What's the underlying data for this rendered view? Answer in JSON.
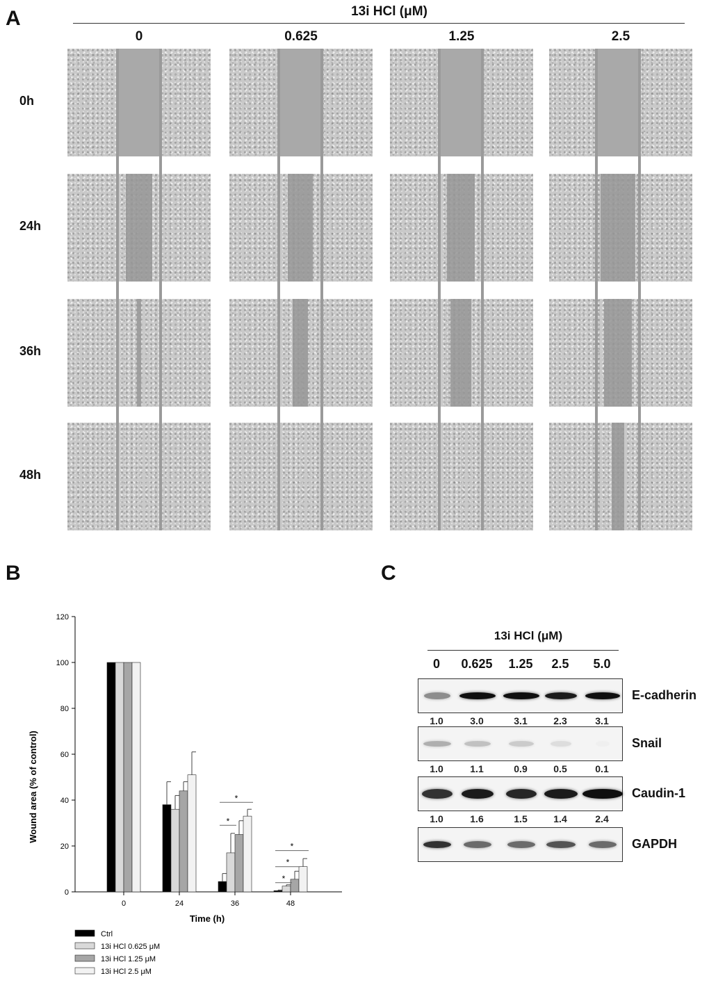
{
  "panel_a": {
    "letter": "A",
    "treatment_label": "13i HCl (μM)",
    "concentrations": [
      "0",
      "0.625",
      "1.25",
      "2.5"
    ],
    "timepoints": [
      "0h",
      "24h",
      "36h",
      "48h"
    ]
  },
  "panel_b": {
    "letter": "B"
  },
  "panel_c": {
    "letter": "C",
    "treatment_label": "13i HCl (μM)",
    "concentrations": [
      "0",
      "0.625",
      "1.25",
      "2.5",
      "5.0"
    ],
    "proteins": [
      {
        "name": "E-cadherin",
        "quant": [
          "1.0",
          "3.0",
          "3.1",
          "2.3",
          "3.1"
        ]
      },
      {
        "name": "Snail",
        "quant": [
          "1.0",
          "1.1",
          "0.9",
          "0.5",
          "0.1"
        ]
      },
      {
        "name": "Caudin-1",
        "quant": [
          "1.0",
          "1.6",
          "1.5",
          "1.4",
          "2.4"
        ]
      },
      {
        "name": "GAPDH",
        "quant": []
      }
    ]
  },
  "chart_data": {
    "type": "bar",
    "categories": [
      "0",
      "24",
      "36",
      "48"
    ],
    "xlabel": "Time (h)",
    "ylabel": "Wound area (% of control)",
    "ylim": [
      0,
      120
    ],
    "yticks": [
      "0",
      "20",
      "40",
      "60",
      "80",
      "100",
      "120"
    ],
    "series": [
      {
        "name": "Ctrl",
        "color": "#000000",
        "values": [
          100,
          38,
          4.5,
          0.5
        ],
        "errors": [
          0,
          10,
          3.5,
          0.3
        ]
      },
      {
        "name": "13i HCl 0.625 μM",
        "color": "#d9d9d9",
        "values": [
          100,
          36,
          17,
          2.5
        ],
        "errors": [
          0,
          6,
          8.5,
          0.6
        ]
      },
      {
        "name": "13i HCl 1.25 μM",
        "color": "#a6a6a6",
        "values": [
          100,
          44,
          25,
          5.5
        ],
        "errors": [
          0,
          4,
          6,
          3.5
        ]
      },
      {
        "name": "13i HCl 2.5 μM",
        "color": "#f2f2f2",
        "values": [
          100,
          51,
          33,
          11
        ],
        "errors": [
          0,
          10,
          3,
          3.5
        ]
      }
    ],
    "significance_marker": "*",
    "legend_position": "bottom-left"
  }
}
